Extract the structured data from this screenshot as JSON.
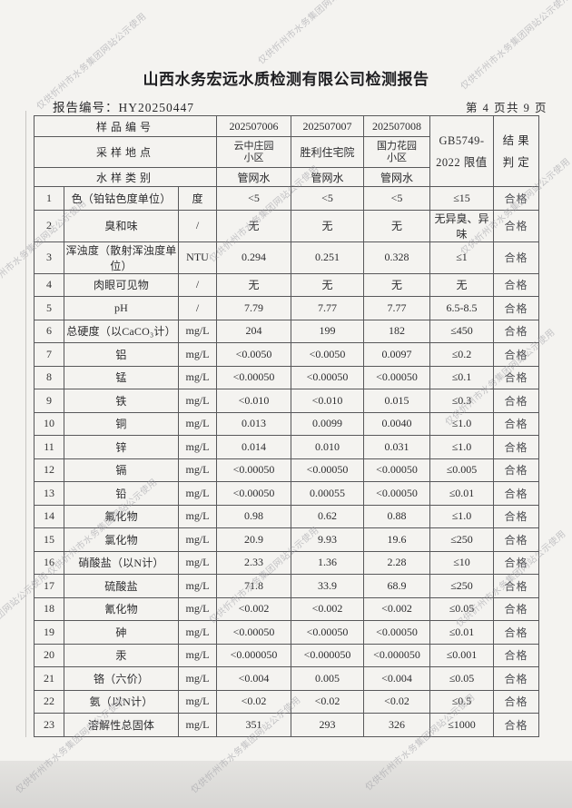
{
  "title": "山西水务宏远水质检测有限公司检测报告",
  "report_no": "报告编号：HY20250447",
  "page_info": "第 4 页共 9 页",
  "watermark": {
    "text": "仅供忻州市水务集团网站公示使用",
    "color": "#9b9ba1",
    "angle_deg": -41,
    "positions": [
      [
        36,
        112
      ],
      [
        280,
        62
      ],
      [
        503,
        90
      ],
      [
        -30,
        318
      ],
      [
        226,
        280
      ],
      [
        503,
        272
      ],
      [
        48,
        625
      ],
      [
        486,
        460
      ],
      [
        226,
        678
      ],
      [
        498,
        682
      ],
      [
        -72,
        728
      ],
      [
        13,
        865
      ],
      [
        206,
        865
      ],
      [
        398,
        862
      ]
    ]
  },
  "table": {
    "header": {
      "sample_id_label": "样品编号",
      "sample_ids": [
        "202507006",
        "202507007",
        "202507008"
      ],
      "location_label": "采样地点",
      "locations": [
        [
          "云中庄园",
          "小区"
        ],
        [
          "胜利住宅院",
          ""
        ],
        [
          "国力花园",
          "小区"
        ]
      ],
      "type_label": "水样类别",
      "sample_types": [
        "管网水",
        "管网水",
        "管网水"
      ],
      "limit_label_line1": "GB5749-",
      "limit_label_line2": "2022 限值",
      "result_label_line1": "结 果",
      "result_label_line2": "判 定"
    },
    "rows": [
      {
        "no": "1",
        "name": "色（铂钴色度单位）",
        "unit": "度",
        "v1": "<5",
        "v2": "<5",
        "v3": "<5",
        "limit": "≤15",
        "result": "合格"
      },
      {
        "no": "2",
        "name": "臭和味",
        "unit": "/",
        "v1": "无",
        "v2": "无",
        "v3": "无",
        "limit": "无异臭、异味",
        "result": "合格"
      },
      {
        "no": "3",
        "name": "浑浊度（散射浑浊度单位）",
        "unit": "NTU",
        "v1": "0.294",
        "v2": "0.251",
        "v3": "0.328",
        "limit": "≤1",
        "result": "合格"
      },
      {
        "no": "4",
        "name": "肉眼可见物",
        "unit": "/",
        "v1": "无",
        "v2": "无",
        "v3": "无",
        "limit": "无",
        "result": "合格"
      },
      {
        "no": "5",
        "name": "pH",
        "unit": "/",
        "v1": "7.79",
        "v2": "7.77",
        "v3": "7.77",
        "limit": "6.5-8.5",
        "result": "合格"
      },
      {
        "no": "6",
        "name": "总硬度（以CaCO₃计）",
        "unit": "mg/L",
        "v1": "204",
        "v2": "199",
        "v3": "182",
        "limit": "≤450",
        "result": "合格"
      },
      {
        "no": "7",
        "name": "铝",
        "unit": "mg/L",
        "v1": "<0.0050",
        "v2": "<0.0050",
        "v3": "0.0097",
        "limit": "≤0.2",
        "result": "合格"
      },
      {
        "no": "8",
        "name": "锰",
        "unit": "mg/L",
        "v1": "<0.00050",
        "v2": "<0.00050",
        "v3": "<0.00050",
        "limit": "≤0.1",
        "result": "合格"
      },
      {
        "no": "9",
        "name": "铁",
        "unit": "mg/L",
        "v1": "<0.010",
        "v2": "<0.010",
        "v3": "0.015",
        "limit": "≤0.3",
        "result": "合格"
      },
      {
        "no": "10",
        "name": "铜",
        "unit": "mg/L",
        "v1": "0.013",
        "v2": "0.0099",
        "v3": "0.0040",
        "limit": "≤1.0",
        "result": "合格"
      },
      {
        "no": "11",
        "name": "锌",
        "unit": "mg/L",
        "v1": "0.014",
        "v2": "0.010",
        "v3": "0.031",
        "limit": "≤1.0",
        "result": "合格"
      },
      {
        "no": "12",
        "name": "镉",
        "unit": "mg/L",
        "v1": "<0.00050",
        "v2": "<0.00050",
        "v3": "<0.00050",
        "limit": "≤0.005",
        "result": "合格"
      },
      {
        "no": "13",
        "name": "铅",
        "unit": "mg/L",
        "v1": "<0.00050",
        "v2": "0.00055",
        "v3": "<0.00050",
        "limit": "≤0.01",
        "result": "合格"
      },
      {
        "no": "14",
        "name": "氟化物",
        "unit": "mg/L",
        "v1": "0.98",
        "v2": "0.62",
        "v3": "0.88",
        "limit": "≤1.0",
        "result": "合格"
      },
      {
        "no": "15",
        "name": "氯化物",
        "unit": "mg/L",
        "v1": "20.9",
        "v2": "9.93",
        "v3": "19.6",
        "limit": "≤250",
        "result": "合格"
      },
      {
        "no": "16",
        "name": "硝酸盐（以N计）",
        "unit": "mg/L",
        "v1": "2.33",
        "v2": "1.36",
        "v3": "2.28",
        "limit": "≤10",
        "result": "合格"
      },
      {
        "no": "17",
        "name": "硫酸盐",
        "unit": "mg/L",
        "v1": "71.8",
        "v2": "33.9",
        "v3": "68.9",
        "limit": "≤250",
        "result": "合格"
      },
      {
        "no": "18",
        "name": "氰化物",
        "unit": "mg/L",
        "v1": "<0.002",
        "v2": "<0.002",
        "v3": "<0.002",
        "limit": "≤0.05",
        "result": "合格"
      },
      {
        "no": "19",
        "name": "砷",
        "unit": "mg/L",
        "v1": "<0.00050",
        "v2": "<0.00050",
        "v3": "<0.00050",
        "limit": "≤0.01",
        "result": "合格"
      },
      {
        "no": "20",
        "name": "汞",
        "unit": "mg/L",
        "v1": "<0.000050",
        "v2": "<0.000050",
        "v3": "<0.000050",
        "limit": "≤0.001",
        "result": "合格"
      },
      {
        "no": "21",
        "name": "铬（六价）",
        "unit": "mg/L",
        "v1": "<0.004",
        "v2": "0.005",
        "v3": "<0.004",
        "limit": "≤0.05",
        "result": "合格"
      },
      {
        "no": "22",
        "name": "氨（以N计）",
        "unit": "mg/L",
        "v1": "<0.02",
        "v2": "<0.02",
        "v3": "<0.02",
        "limit": "≤0.5",
        "result": "合格"
      },
      {
        "no": "23",
        "name": "溶解性总固体",
        "unit": "mg/L",
        "v1": "351",
        "v2": "293",
        "v3": "326",
        "limit": "≤1000",
        "result": "合格"
      }
    ]
  }
}
